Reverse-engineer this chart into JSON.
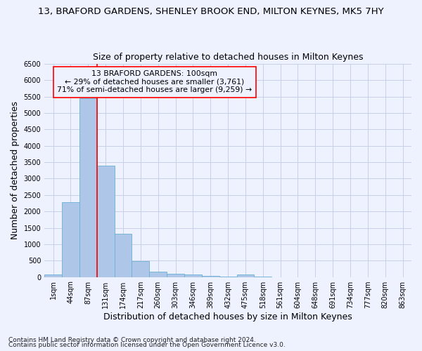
{
  "title": "13, BRAFORD GARDENS, SHENLEY BROOK END, MILTON KEYNES, MK5 7HY",
  "subtitle": "Size of property relative to detached houses in Milton Keynes",
  "xlabel": "Distribution of detached houses by size in Milton Keynes",
  "ylabel": "Number of detached properties",
  "footnote1": "Contains HM Land Registry data © Crown copyright and database right 2024.",
  "footnote2": "Contains public sector information licensed under the Open Government Licence v3.0.",
  "annotation_line1": "13 BRAFORD GARDENS: 100sqm",
  "annotation_line2": "← 29% of detached houses are smaller (3,761)",
  "annotation_line3": "71% of semi-detached houses are larger (9,259) →",
  "bar_color": "#aec6e8",
  "bar_edge_color": "#6aafd6",
  "vline_color": "red",
  "vline_x": 2.5,
  "categories": [
    "1sqm",
    "44sqm",
    "87sqm",
    "131sqm",
    "174sqm",
    "217sqm",
    "260sqm",
    "303sqm",
    "346sqm",
    "389sqm",
    "432sqm",
    "475sqm",
    "518sqm",
    "561sqm",
    "604sqm",
    "648sqm",
    "691sqm",
    "734sqm",
    "777sqm",
    "820sqm",
    "863sqm"
  ],
  "values": [
    75,
    2280,
    5450,
    3400,
    1310,
    480,
    165,
    90,
    75,
    30,
    20,
    75,
    10,
    0,
    0,
    0,
    0,
    0,
    0,
    0,
    0
  ],
  "ylim": [
    0,
    6500
  ],
  "yticks": [
    0,
    500,
    1000,
    1500,
    2000,
    2500,
    3000,
    3500,
    4000,
    4500,
    5000,
    5500,
    6000,
    6500
  ],
  "background_color": "#eef2ff",
  "grid_color": "#c8d0e8",
  "title_fontsize": 9.5,
  "subtitle_fontsize": 9,
  "axis_label_fontsize": 9,
  "tick_fontsize": 7,
  "footnote_fontsize": 6.5
}
